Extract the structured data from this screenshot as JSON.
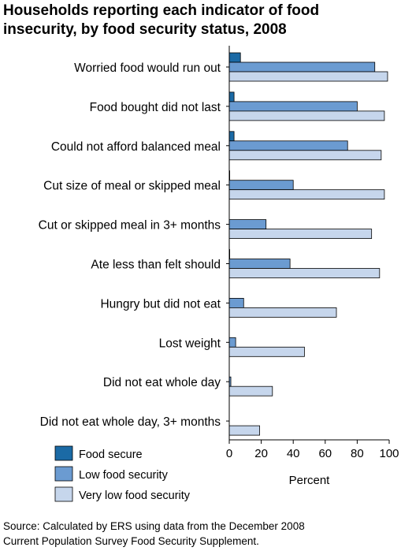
{
  "title_lines": [
    "Households reporting each indicator of food",
    "insecurity, by food security status, 2008"
  ],
  "source_lines": [
    "Source: Calculated by ERS using data from the December 2008",
    "Current Population Survey Food Security Supplement."
  ],
  "chart_data": {
    "type": "bar",
    "orientation": "horizontal",
    "title": "Households reporting each indicator of food insecurity, by food security status, 2008",
    "xlabel": "Percent",
    "xlim": [
      0,
      100
    ],
    "xticks": [
      0,
      20,
      40,
      60,
      80,
      100
    ],
    "grid": false,
    "legend_position": "bottom-left",
    "categories": [
      "Worried food would run out",
      "Food bought did not last",
      "Could not afford balanced meal",
      "Cut size of meal or skipped meal",
      "Cut or skipped meal in 3+ months",
      "Ate less than felt should",
      "Hungry but did not eat",
      "Lost weight",
      "Did not eat whole day",
      "Did not eat whole day, 3+ months"
    ],
    "series": [
      {
        "name": "Food secure",
        "color": "#1b6aa5",
        "values": [
          7,
          3,
          3,
          0.3,
          0,
          0.3,
          0,
          0,
          0,
          0
        ]
      },
      {
        "name": "Low food security",
        "color": "#6b9bd1",
        "values": [
          91,
          80,
          74,
          40,
          23,
          38,
          9,
          4,
          1,
          0
        ]
      },
      {
        "name": "Very low food security",
        "color": "#c6d6ec",
        "values": [
          99,
          97,
          95,
          97,
          89,
          94,
          67,
          47,
          27,
          19
        ]
      }
    ]
  }
}
